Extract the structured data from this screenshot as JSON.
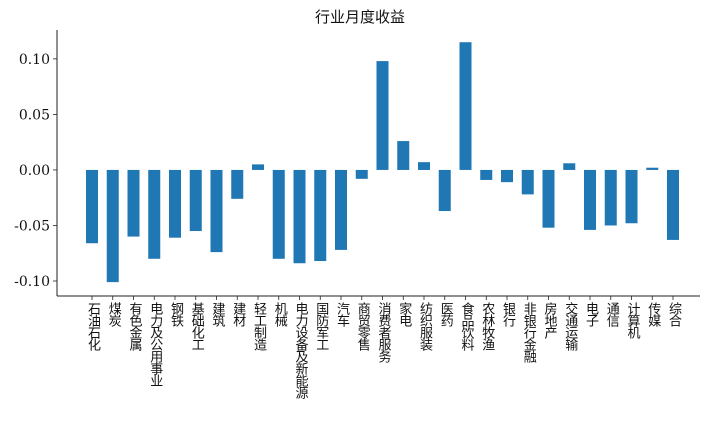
{
  "chart_data": {
    "type": "bar",
    "title": "行业月度收益",
    "xlabel": "",
    "ylabel": "",
    "ylim": [
      -0.1135,
      0.126
    ],
    "yticks": [
      -0.1,
      -0.05,
      0.0,
      0.05,
      0.1
    ],
    "ytick_labels": [
      "-0.10",
      "-0.05",
      "0.00",
      "0.05",
      "0.10"
    ],
    "grid": false,
    "color": "#1f77b4",
    "categories": [
      "石油石化",
      "煤炭",
      "有色金属",
      "电力及公用事业",
      "钢铁",
      "基础化工",
      "建筑",
      "建材",
      "轻工制造",
      "机械",
      "电力设备及新能源",
      "国防军工",
      "汽车",
      "商贸零售",
      "消费者服务",
      "家电",
      "纺织服装",
      "医药",
      "食品饮料",
      "农林牧渔",
      "银行",
      "非银行金融",
      "房地产",
      "交通运输",
      "电子",
      "通信",
      "计算机",
      "传媒",
      "综合"
    ],
    "values": [
      -0.066,
      -0.101,
      -0.06,
      -0.08,
      -0.061,
      -0.055,
      -0.074,
      -0.026,
      0.005,
      -0.08,
      -0.084,
      -0.082,
      -0.072,
      -0.008,
      0.098,
      0.026,
      0.007,
      -0.037,
      0.115,
      -0.009,
      -0.011,
      -0.022,
      -0.052,
      0.006,
      -0.054,
      -0.05,
      -0.048,
      0.002,
      -0.063
    ]
  }
}
